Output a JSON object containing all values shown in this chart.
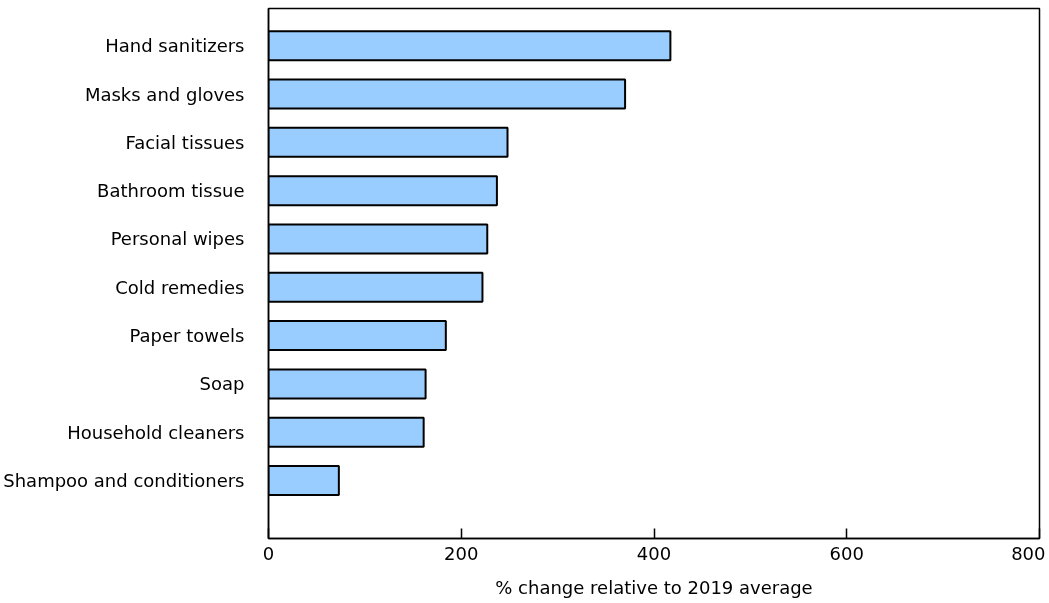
{
  "chart_data": {
    "type": "bar",
    "orientation": "horizontal",
    "xlabel": "% change relative to 2019 average",
    "categories": [
      "Hand sanitizers",
      "Masks and gloves",
      "Facial tissues",
      "Bathroom tissue",
      "Personal wipes",
      "Cold remedies",
      "Paper towels",
      "Soap",
      "Household cleaners",
      "Shampoo and conditioners"
    ],
    "values": [
      417,
      370,
      248,
      237,
      227,
      222,
      184,
      163,
      161,
      73
    ],
    "color": "#99ccff",
    "xlim": [
      0,
      800
    ],
    "xticks": [
      0,
      200,
      400,
      600,
      800
    ],
    "grid": false
  }
}
